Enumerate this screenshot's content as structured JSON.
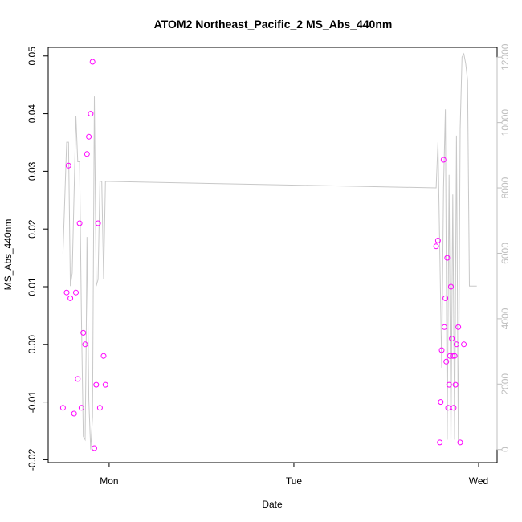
{
  "chart_data": {
    "type": "scatter",
    "title": "ATOM2 Northeast_Pacific_2 MS_Abs_440nm",
    "xlabel": "Date",
    "ylabel": "MS_Abs_440nm",
    "x_ticks": [
      "Mon",
      "Tue",
      "Wed"
    ],
    "y_ticks": [
      "-0.02",
      "-0.01",
      "0.00",
      "0.01",
      "0.02",
      "0.03",
      "0.04",
      "0.05"
    ],
    "y2_ticks": [
      "0",
      "2000",
      "4000",
      "6000",
      "8000",
      "10000",
      "12000"
    ],
    "ylim": [
      -0.0205,
      0.0515
    ],
    "y2lim": [
      -400,
      12300
    ],
    "x_range_days": [
      -0.33,
      2.1
    ],
    "grid": false,
    "colors": {
      "points": "#ff00ff",
      "line": "#c8c8c8",
      "right_axis": "#bfbfbf",
      "axis": "#000000"
    },
    "series": [
      {
        "kind": "points",
        "x_days": [
          -0.25,
          -0.23,
          -0.22,
          -0.21,
          -0.19,
          -0.18,
          -0.17,
          -0.16,
          -0.15,
          -0.14,
          -0.13,
          -0.12,
          -0.11,
          -0.1,
          -0.09,
          -0.08,
          -0.07,
          -0.06,
          -0.05,
          -0.03,
          -0.02,
          1.77,
          1.78,
          1.79,
          1.795,
          1.8,
          1.81,
          1.815,
          1.82,
          1.825,
          1.83,
          1.835,
          1.84,
          1.845,
          1.85,
          1.855,
          1.86,
          1.865,
          1.87,
          1.875,
          1.88,
          1.89,
          1.9,
          1.92
        ],
        "y": [
          -0.011,
          0.009,
          0.031,
          0.008,
          -0.012,
          0.009,
          -0.006,
          0.021,
          -0.011,
          0.002,
          0.0,
          0.033,
          0.036,
          0.04,
          0.049,
          -0.018,
          -0.007,
          0.021,
          -0.011,
          -0.002,
          -0.007,
          0.017,
          0.018,
          -0.017,
          -0.01,
          -0.001,
          0.032,
          0.003,
          0.008,
          -0.003,
          0.015,
          -0.011,
          -0.007,
          -0.002,
          0.01,
          0.001,
          -0.002,
          -0.011,
          -0.002,
          -0.007,
          0.0,
          0.003,
          -0.017,
          0.0
        ]
      },
      {
        "kind": "line",
        "axis": "right",
        "x_days": [
          -0.25,
          -0.23,
          -0.22,
          -0.21,
          -0.2,
          -0.18,
          -0.17,
          -0.16,
          -0.15,
          -0.14,
          -0.13,
          -0.125,
          -0.12,
          -0.11,
          -0.1,
          -0.09,
          -0.08,
          -0.07,
          -0.06,
          -0.05,
          -0.04,
          -0.03,
          -0.02,
          1.77,
          1.78,
          1.79,
          1.8,
          1.81,
          1.82,
          1.83,
          1.84,
          1.85,
          1.86,
          1.87,
          1.88,
          1.89,
          1.9,
          1.91,
          1.92,
          1.93,
          1.94,
          1.95,
          1.96,
          1.97,
          1.98,
          1.99
        ],
        "y": [
          6000,
          9400,
          9400,
          5000,
          5400,
          10200,
          8800,
          8800,
          4000,
          400,
          300,
          3000,
          6500,
          1500,
          0,
          1000,
          10800,
          5000,
          5200,
          8200,
          8200,
          5200,
          8200,
          8000,
          9400,
          6000,
          2500,
          8000,
          10400,
          300,
          8400,
          200,
          7800,
          300,
          9600,
          200,
          9800,
          12000,
          12100,
          11800,
          11300,
          5000,
          5000,
          5000,
          5000,
          5000
        ]
      }
    ]
  }
}
